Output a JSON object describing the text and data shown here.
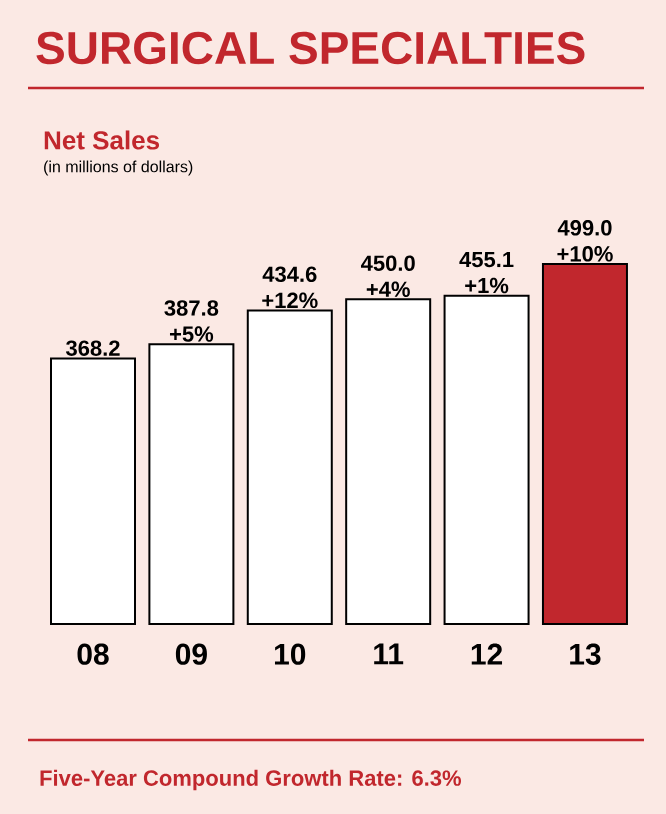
{
  "chart_data": {
    "type": "bar",
    "title": "SURGICAL SPECIALTIES",
    "subtitle": "Net Sales",
    "categories": [
      "08",
      "09",
      "10",
      "11",
      "12",
      "13"
    ],
    "values": [
      368.2,
      387.8,
      434.6,
      450.0,
      455.1,
      499.0
    ],
    "colors": [
      "#ffffff",
      "#ffffff",
      "#ffffff",
      "#ffffff",
      "#ffffff",
      "#c1272d"
    ],
    "value_labels": [
      "368.2",
      "387.8",
      "434.6",
      "450.0",
      "455.1",
      "499.0"
    ],
    "annotations": [
      "(in millions of dollars)",
      {
        "text": "+5%",
        "x": "09",
        "y": 387.8
      },
      {
        "text": "+12%",
        "x": "10",
        "y": 434.6
      },
      {
        "text": "+4%",
        "x": "11",
        "y": 450.0
      },
      {
        "text": "+1%",
        "x": "12",
        "y": 455.1
      },
      {
        "text": "+10%",
        "x": "13",
        "y": 499.0
      },
      "Five-Year Compound Growth Rate: 6.3%"
    ]
  }
}
